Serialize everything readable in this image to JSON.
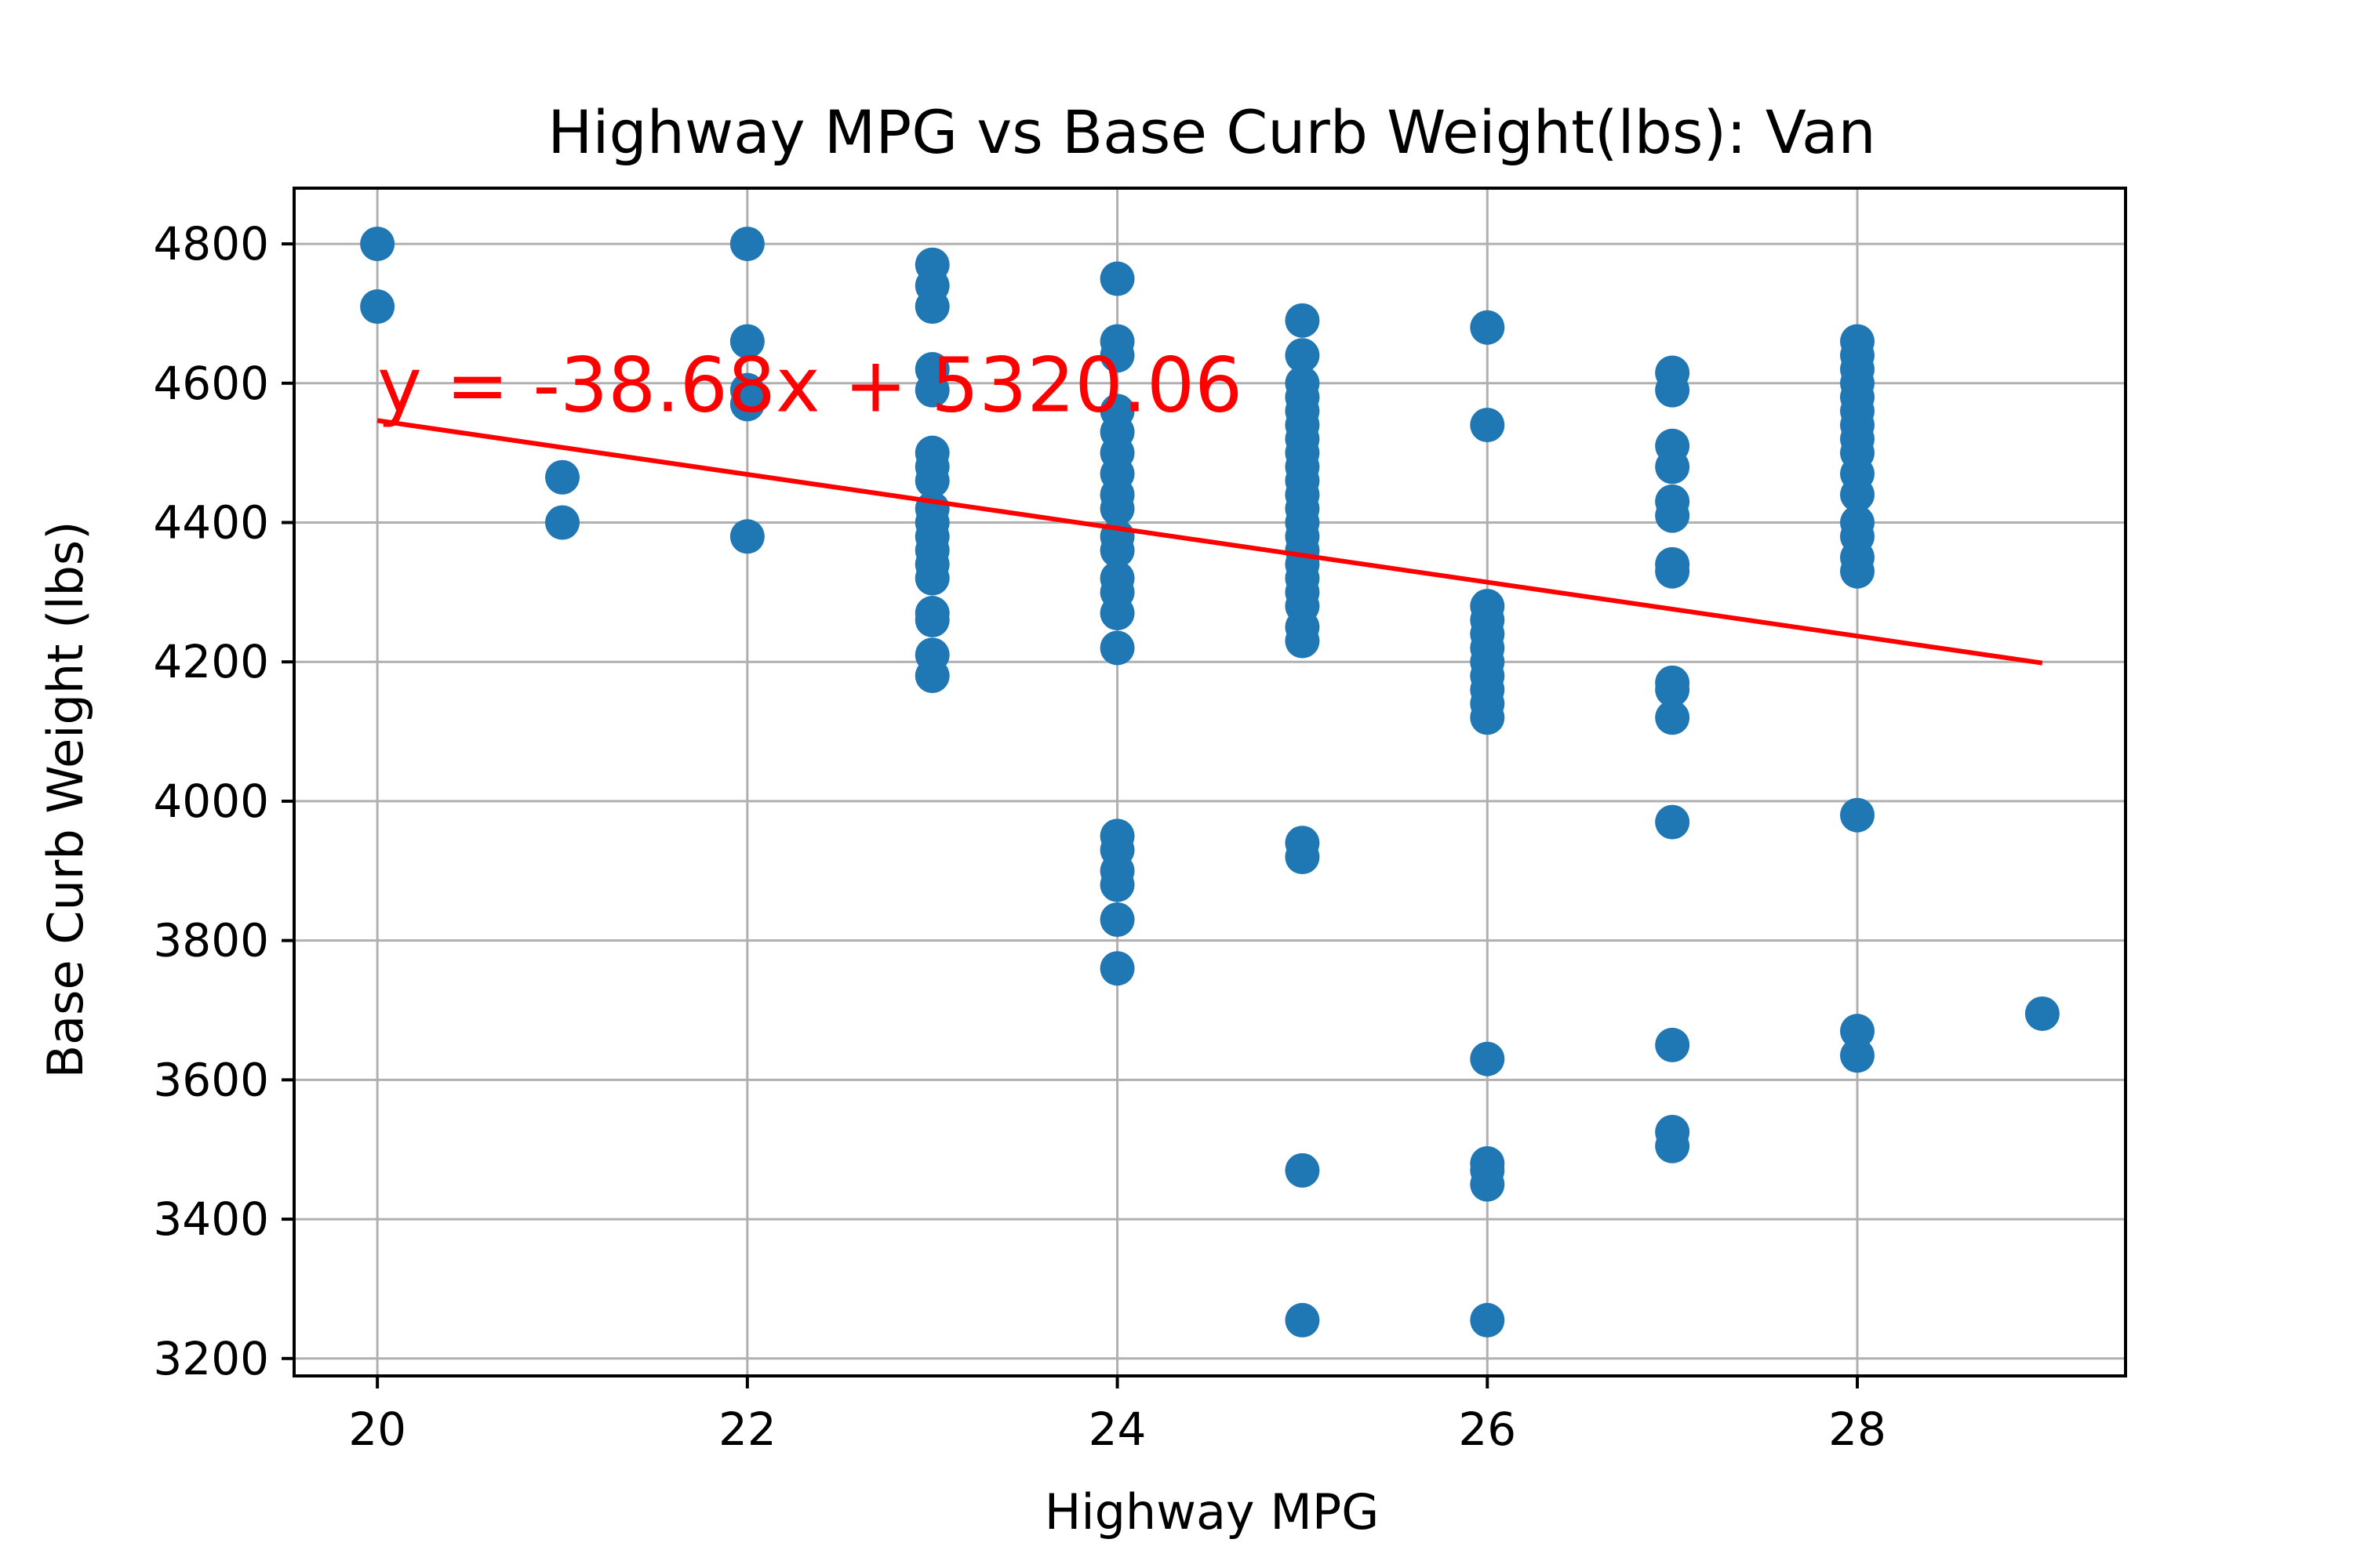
{
  "chart_data": {
    "type": "scatter",
    "title": "Highway MPG vs Base Curb Weight(lbs): Van",
    "xlabel": "Highway MPG",
    "ylabel": "Base Curb Weight (lbs)",
    "xlim": [
      19.55,
      29.45
    ],
    "ylim": [
      3175,
      4880
    ],
    "xticks": [
      20,
      22,
      24,
      26,
      28
    ],
    "yticks": [
      3200,
      3400,
      3600,
      3800,
      4000,
      4200,
      4400,
      4600,
      4800
    ],
    "grid": true,
    "point_color": "#1f77b4",
    "line_color": "#ff0000",
    "regression": {
      "slope": -38.68,
      "intercept": 5320.06,
      "x_range": [
        20,
        29
      ],
      "equation_text": "y = -38.68x + 5320.06"
    },
    "points": [
      {
        "x": 20,
        "y": 4800
      },
      {
        "x": 20,
        "y": 4710
      },
      {
        "x": 21,
        "y": 4465
      },
      {
        "x": 21,
        "y": 4400
      },
      {
        "x": 22,
        "y": 4800
      },
      {
        "x": 22,
        "y": 4660
      },
      {
        "x": 22,
        "y": 4590
      },
      {
        "x": 22,
        "y": 4570
      },
      {
        "x": 22,
        "y": 4380
      },
      {
        "x": 23,
        "y": 4770
      },
      {
        "x": 23,
        "y": 4740
      },
      {
        "x": 23,
        "y": 4710
      },
      {
        "x": 23,
        "y": 4620
      },
      {
        "x": 23,
        "y": 4590
      },
      {
        "x": 23,
        "y": 4500
      },
      {
        "x": 23,
        "y": 4480
      },
      {
        "x": 23,
        "y": 4460
      },
      {
        "x": 23,
        "y": 4420
      },
      {
        "x": 23,
        "y": 4400
      },
      {
        "x": 23,
        "y": 4380
      },
      {
        "x": 23,
        "y": 4360
      },
      {
        "x": 23,
        "y": 4340
      },
      {
        "x": 23,
        "y": 4320
      },
      {
        "x": 23,
        "y": 4270
      },
      {
        "x": 23,
        "y": 4260
      },
      {
        "x": 23,
        "y": 4210
      },
      {
        "x": 23,
        "y": 4180
      },
      {
        "x": 24,
        "y": 4750
      },
      {
        "x": 24,
        "y": 4660
      },
      {
        "x": 24,
        "y": 4640
      },
      {
        "x": 24,
        "y": 4560
      },
      {
        "x": 24,
        "y": 4530
      },
      {
        "x": 24,
        "y": 4500
      },
      {
        "x": 24,
        "y": 4470
      },
      {
        "x": 24,
        "y": 4440
      },
      {
        "x": 24,
        "y": 4420
      },
      {
        "x": 24,
        "y": 4380
      },
      {
        "x": 24,
        "y": 4360
      },
      {
        "x": 24,
        "y": 4320
      },
      {
        "x": 24,
        "y": 4300
      },
      {
        "x": 24,
        "y": 4270
      },
      {
        "x": 24,
        "y": 4220
      },
      {
        "x": 24,
        "y": 3950
      },
      {
        "x": 24,
        "y": 3930
      },
      {
        "x": 24,
        "y": 3900
      },
      {
        "x": 24,
        "y": 3880
      },
      {
        "x": 24,
        "y": 3830
      },
      {
        "x": 24,
        "y": 3760
      },
      {
        "x": 25,
        "y": 4690
      },
      {
        "x": 25,
        "y": 4640
      },
      {
        "x": 25,
        "y": 4600
      },
      {
        "x": 25,
        "y": 4580
      },
      {
        "x": 25,
        "y": 4560
      },
      {
        "x": 25,
        "y": 4540
      },
      {
        "x": 25,
        "y": 4520
      },
      {
        "x": 25,
        "y": 4500
      },
      {
        "x": 25,
        "y": 4480
      },
      {
        "x": 25,
        "y": 4460
      },
      {
        "x": 25,
        "y": 4440
      },
      {
        "x": 25,
        "y": 4420
      },
      {
        "x": 25,
        "y": 4400
      },
      {
        "x": 25,
        "y": 4380
      },
      {
        "x": 25,
        "y": 4360
      },
      {
        "x": 25,
        "y": 4340
      },
      {
        "x": 25,
        "y": 4320
      },
      {
        "x": 25,
        "y": 4300
      },
      {
        "x": 25,
        "y": 4280
      },
      {
        "x": 25,
        "y": 4250
      },
      {
        "x": 25,
        "y": 4230
      },
      {
        "x": 25,
        "y": 3940
      },
      {
        "x": 25,
        "y": 3920
      },
      {
        "x": 25,
        "y": 3470
      },
      {
        "x": 25,
        "y": 3255
      },
      {
        "x": 26,
        "y": 4680
      },
      {
        "x": 26,
        "y": 4540
      },
      {
        "x": 26,
        "y": 4280
      },
      {
        "x": 26,
        "y": 4260
      },
      {
        "x": 26,
        "y": 4240
      },
      {
        "x": 26,
        "y": 4220
      },
      {
        "x": 26,
        "y": 4200
      },
      {
        "x": 26,
        "y": 4180
      },
      {
        "x": 26,
        "y": 4160
      },
      {
        "x": 26,
        "y": 4140
      },
      {
        "x": 26,
        "y": 4120
      },
      {
        "x": 26,
        "y": 3630
      },
      {
        "x": 26,
        "y": 3480
      },
      {
        "x": 26,
        "y": 3470
      },
      {
        "x": 26,
        "y": 3450
      },
      {
        "x": 26,
        "y": 3255
      },
      {
        "x": 27,
        "y": 4615
      },
      {
        "x": 27,
        "y": 4590
      },
      {
        "x": 27,
        "y": 4510
      },
      {
        "x": 27,
        "y": 4480
      },
      {
        "x": 27,
        "y": 4430
      },
      {
        "x": 27,
        "y": 4410
      },
      {
        "x": 27,
        "y": 4340
      },
      {
        "x": 27,
        "y": 4330
      },
      {
        "x": 27,
        "y": 4170
      },
      {
        "x": 27,
        "y": 4160
      },
      {
        "x": 27,
        "y": 4120
      },
      {
        "x": 27,
        "y": 3970
      },
      {
        "x": 27,
        "y": 3650
      },
      {
        "x": 27,
        "y": 3525
      },
      {
        "x": 27,
        "y": 3505
      },
      {
        "x": 28,
        "y": 4660
      },
      {
        "x": 28,
        "y": 4640
      },
      {
        "x": 28,
        "y": 4620
      },
      {
        "x": 28,
        "y": 4600
      },
      {
        "x": 28,
        "y": 4580
      },
      {
        "x": 28,
        "y": 4560
      },
      {
        "x": 28,
        "y": 4540
      },
      {
        "x": 28,
        "y": 4520
      },
      {
        "x": 28,
        "y": 4500
      },
      {
        "x": 28,
        "y": 4470
      },
      {
        "x": 28,
        "y": 4440
      },
      {
        "x": 28,
        "y": 4400
      },
      {
        "x": 28,
        "y": 4380
      },
      {
        "x": 28,
        "y": 4350
      },
      {
        "x": 28,
        "y": 4330
      },
      {
        "x": 28,
        "y": 3980
      },
      {
        "x": 28,
        "y": 3670
      },
      {
        "x": 28,
        "y": 3635
      },
      {
        "x": 29,
        "y": 3695
      }
    ]
  }
}
